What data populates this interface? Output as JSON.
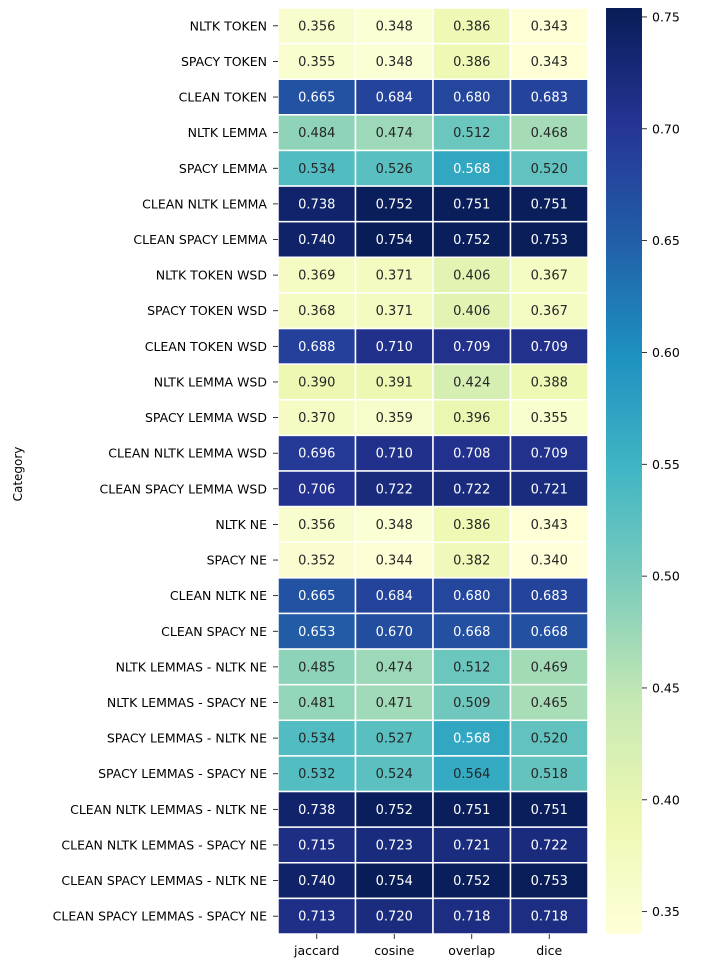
{
  "chart_data": {
    "type": "heatmap",
    "title": "",
    "ylabel": "Category",
    "xlabel": "",
    "columns": [
      "jaccard",
      "cosine",
      "overlap",
      "dice"
    ],
    "rows": [
      "NLTK TOKEN",
      "SPACY TOKEN",
      "CLEAN TOKEN",
      "NLTK LEMMA",
      "SPACY LEMMA",
      "CLEAN NLTK LEMMA",
      "CLEAN SPACY LEMMA",
      "NLTK TOKEN WSD",
      "SPACY TOKEN WSD",
      "CLEAN TOKEN WSD",
      "NLTK LEMMA WSD",
      "SPACY LEMMA WSD",
      "CLEAN NLTK LEMMA WSD",
      "CLEAN SPACY LEMMA WSD",
      "NLTK NE",
      "SPACY NE",
      "CLEAN NLTK NE",
      "CLEAN SPACY NE",
      "NLTK LEMMAS - NLTK NE",
      "NLTK LEMMAS - SPACY NE",
      "SPACY LEMMAS - NLTK NE",
      "SPACY LEMMAS - SPACY NE",
      "CLEAN NLTK LEMMAS - NLTK NE",
      "CLEAN NLTK LEMMAS - SPACY NE",
      "CLEAN SPACY LEMMAS - NLTK NE",
      "CLEAN SPACY LEMMAS - SPACY NE"
    ],
    "values": [
      [
        "0.356",
        "0.348",
        "0.386",
        "0.343"
      ],
      [
        "0.355",
        "0.348",
        "0.386",
        "0.343"
      ],
      [
        "0.665",
        "0.684",
        "0.680",
        "0.683"
      ],
      [
        "0.484",
        "0.474",
        "0.512",
        "0.468"
      ],
      [
        "0.534",
        "0.526",
        "0.568",
        "0.520"
      ],
      [
        "0.738",
        "0.752",
        "0.751",
        "0.751"
      ],
      [
        "0.740",
        "0.754",
        "0.752",
        "0.753"
      ],
      [
        "0.369",
        "0.371",
        "0.406",
        "0.367"
      ],
      [
        "0.368",
        "0.371",
        "0.406",
        "0.367"
      ],
      [
        "0.688",
        "0.710",
        "0.709",
        "0.709"
      ],
      [
        "0.390",
        "0.391",
        "0.424",
        "0.388"
      ],
      [
        "0.370",
        "0.359",
        "0.396",
        "0.355"
      ],
      [
        "0.696",
        "0.710",
        "0.708",
        "0.709"
      ],
      [
        "0.706",
        "0.722",
        "0.722",
        "0.721"
      ],
      [
        "0.356",
        "0.348",
        "0.386",
        "0.343"
      ],
      [
        "0.352",
        "0.344",
        "0.382",
        "0.340"
      ],
      [
        "0.665",
        "0.684",
        "0.680",
        "0.683"
      ],
      [
        "0.653",
        "0.670",
        "0.668",
        "0.668"
      ],
      [
        "0.485",
        "0.474",
        "0.512",
        "0.469"
      ],
      [
        "0.481",
        "0.471",
        "0.509",
        "0.465"
      ],
      [
        "0.534",
        "0.527",
        "0.568",
        "0.520"
      ],
      [
        "0.532",
        "0.524",
        "0.564",
        "0.518"
      ],
      [
        "0.738",
        "0.752",
        "0.751",
        "0.751"
      ],
      [
        "0.715",
        "0.723",
        "0.721",
        "0.722"
      ],
      [
        "0.740",
        "0.754",
        "0.752",
        "0.753"
      ],
      [
        "0.713",
        "0.720",
        "0.718",
        "0.718"
      ]
    ],
    "colormap": "YlGnBu",
    "color_range": [
      0.34,
      0.754
    ],
    "colorbar_ticks": [
      "0.35",
      "0.40",
      "0.45",
      "0.50",
      "0.55",
      "0.60",
      "0.65",
      "0.70",
      "0.75"
    ],
    "legend_placement": "right",
    "grid": false
  }
}
